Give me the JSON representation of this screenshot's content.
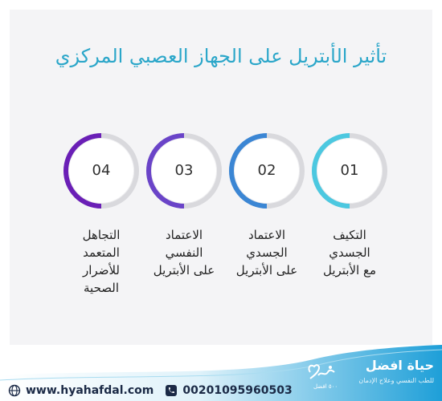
{
  "title": "تأثير الأبتريل على الجهاز العصبي المركزي",
  "steps": [
    {
      "number": "01",
      "lines": [
        "التكيف",
        "الجسدي",
        "مع الأبتريل"
      ],
      "color": "#4cc8e0"
    },
    {
      "number": "02",
      "lines": [
        "الاعتماد",
        "الجسدي",
        "على الأبتريل"
      ],
      "color": "#3b86d4"
    },
    {
      "number": "03",
      "lines": [
        "الاعتماد",
        "النفسي",
        "على الأبتريل"
      ],
      "color": "#6a44c8"
    },
    {
      "number": "04",
      "lines": [
        "التجاهل",
        "المتعمد",
        "للأضرار",
        "الصحية"
      ],
      "color": "#6a1fb6"
    }
  ],
  "footer": {
    "website": "www.hyahafdal.com",
    "phone": "00201095960503",
    "brand_name": "حياة افضل",
    "brand_tagline": "للطب النفسي وعلاج الإدمان",
    "logo_text": "٥٠٠ افضل",
    "gradient_left": "#ffffff",
    "gradient_right": "#1e9fd8"
  }
}
